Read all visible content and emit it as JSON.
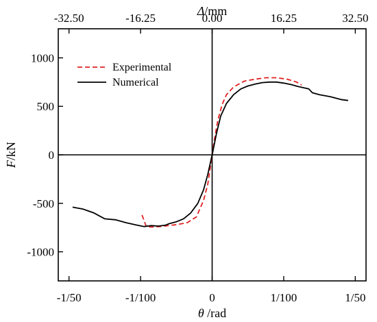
{
  "chart_data": {
    "type": "line",
    "xlabel": {
      "symbol": "θ",
      "unit": " /rad"
    },
    "x2label": {
      "symbol": "Δ",
      "unit": "/mm"
    },
    "ylabel": {
      "symbol": "F",
      "unit": "/kN"
    },
    "xlim": [
      -0.0215,
      0.0215
    ],
    "ylim": [
      -1300,
      1300
    ],
    "x_ticks": [
      {
        "value": -0.02,
        "label": "-1/50"
      },
      {
        "value": -0.01,
        "label": "-1/100"
      },
      {
        "value": 0,
        "label": "0"
      },
      {
        "value": 0.01,
        "label": "1/100"
      },
      {
        "value": 0.02,
        "label": "1/50"
      }
    ],
    "x2_ticks": [
      {
        "value": -32.5,
        "label": "-32.50"
      },
      {
        "value": -16.25,
        "label": "-16.25"
      },
      {
        "value": 0,
        "label": "0.00"
      },
      {
        "value": 16.25,
        "label": "16.25"
      },
      {
        "value": 32.5,
        "label": "32.50"
      }
    ],
    "x2_per_x": 1625,
    "y_ticks": [
      {
        "value": -1000,
        "label": "-1000"
      },
      {
        "value": -500,
        "label": "-500"
      },
      {
        "value": 0,
        "label": "0"
      },
      {
        "value": 500,
        "label": "500"
      },
      {
        "value": 1000,
        "label": "1000"
      }
    ],
    "legend": {
      "position": "top-left"
    },
    "grid": false,
    "zero_lines": true,
    "series": [
      {
        "name": "Experimental",
        "color": "#e02020",
        "style": "dashed",
        "points": [
          [
            -0.0098,
            -620
          ],
          [
            -0.0094,
            -700
          ],
          [
            -0.0092,
            -740
          ],
          [
            -0.0085,
            -745
          ],
          [
            -0.007,
            -738
          ],
          [
            -0.005,
            -720
          ],
          [
            -0.0035,
            -700
          ],
          [
            -0.0022,
            -640
          ],
          [
            -0.0012,
            -470
          ],
          [
            -0.0006,
            -300
          ],
          [
            -0.0003,
            -150
          ],
          [
            0,
            0
          ],
          [
            0.0003,
            150
          ],
          [
            0.0008,
            360
          ],
          [
            0.0014,
            520
          ],
          [
            0.002,
            620
          ],
          [
            0.003,
            700
          ],
          [
            0.0045,
            760
          ],
          [
            0.006,
            780
          ],
          [
            0.0075,
            795
          ],
          [
            0.009,
            795
          ],
          [
            0.0105,
            780
          ],
          [
            0.0118,
            750
          ],
          [
            0.0125,
            720
          ]
        ]
      },
      {
        "name": "Numerical",
        "color": "#000000",
        "style": "solid",
        "points": [
          [
            -0.0195,
            -540
          ],
          [
            -0.018,
            -560
          ],
          [
            -0.0165,
            -600
          ],
          [
            -0.015,
            -660
          ],
          [
            -0.0135,
            -670
          ],
          [
            -0.012,
            -700
          ],
          [
            -0.0105,
            -725
          ],
          [
            -0.0095,
            -740
          ],
          [
            -0.0085,
            -730
          ],
          [
            -0.0075,
            -735
          ],
          [
            -0.0065,
            -725
          ],
          [
            -0.006,
            -710
          ],
          [
            -0.005,
            -690
          ],
          [
            -0.004,
            -660
          ],
          [
            -0.003,
            -600
          ],
          [
            -0.002,
            -500
          ],
          [
            -0.0012,
            -360
          ],
          [
            -0.0006,
            -200
          ],
          [
            0,
            0
          ],
          [
            0.0006,
            220
          ],
          [
            0.0012,
            400
          ],
          [
            0.002,
            530
          ],
          [
            0.003,
            620
          ],
          [
            0.004,
            680
          ],
          [
            0.005,
            710
          ],
          [
            0.006,
            730
          ],
          [
            0.007,
            745
          ],
          [
            0.008,
            750
          ],
          [
            0.009,
            750
          ],
          [
            0.01,
            740
          ],
          [
            0.011,
            725
          ],
          [
            0.012,
            705
          ],
          [
            0.0135,
            680
          ],
          [
            0.014,
            640
          ],
          [
            0.015,
            620
          ],
          [
            0.0165,
            600
          ],
          [
            0.018,
            570
          ],
          [
            0.019,
            560
          ]
        ]
      }
    ]
  }
}
